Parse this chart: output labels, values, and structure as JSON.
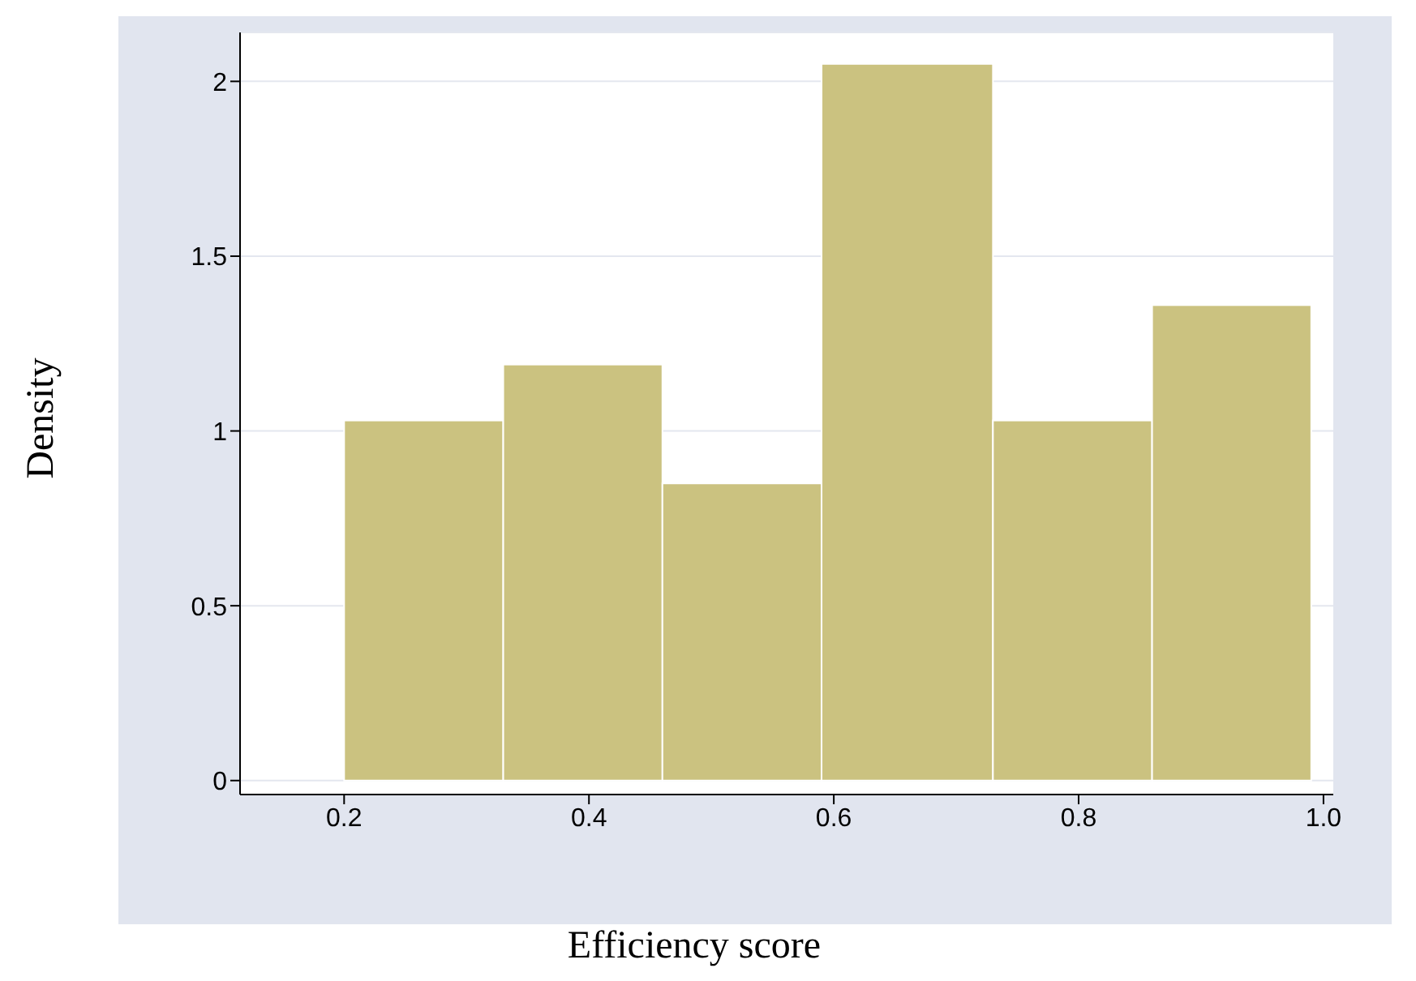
{
  "chart_data": {
    "type": "histogram",
    "xlabel": "Efficiency score",
    "ylabel": "Density",
    "bins": [
      0.2,
      0.33,
      0.46,
      0.59,
      0.73,
      0.86,
      0.99
    ],
    "values": [
      1.03,
      1.19,
      0.85,
      2.05,
      1.03,
      1.36
    ],
    "color": "#cbc280",
    "xlim": [
      0.115,
      1.008
    ],
    "xticks": [
      0.2,
      0.4,
      0.6,
      0.8,
      {
        "value": 1,
        "label": "1.0"
      }
    ],
    "ylim": [
      -0.04,
      2.14
    ],
    "yticks": [
      0,
      0.5,
      1,
      1.5,
      2
    ],
    "grid": "y"
  }
}
